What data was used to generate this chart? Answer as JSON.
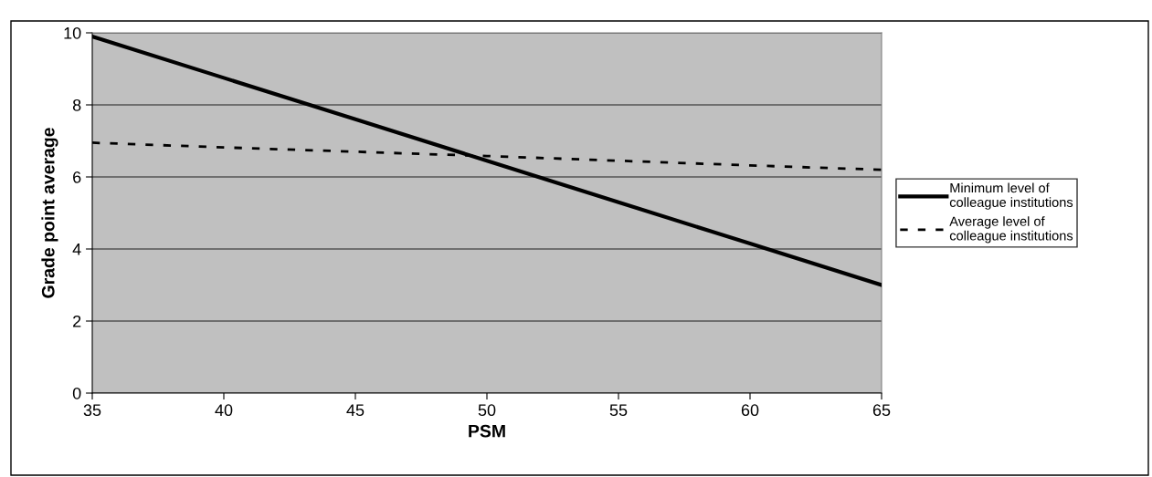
{
  "chart_data": {
    "type": "line",
    "xlabel": "PSM",
    "ylabel": "Grade point average",
    "x": [
      35,
      40,
      45,
      50,
      55,
      60,
      65
    ],
    "series": [
      {
        "name": "Minimum level of\ncolleague institutions",
        "color": "#000000",
        "line_style": "solid",
        "values": [
          9.9,
          8.75,
          7.6,
          6.45,
          5.3,
          4.15,
          3.0
        ]
      },
      {
        "name": "Average level of\ncolleague institutions",
        "color": "#000000",
        "line_style": "dashed",
        "values": [
          6.95,
          6.82,
          6.7,
          6.58,
          6.45,
          6.32,
          6.2
        ]
      }
    ],
    "xlim": [
      35,
      65
    ],
    "xticks": [
      35,
      40,
      45,
      50,
      55,
      60,
      65
    ],
    "ylim": [
      0,
      10
    ],
    "yticks": [
      0,
      2,
      4,
      6,
      8,
      10
    ],
    "grid": "y",
    "legend": "right",
    "marker": "none"
  }
}
